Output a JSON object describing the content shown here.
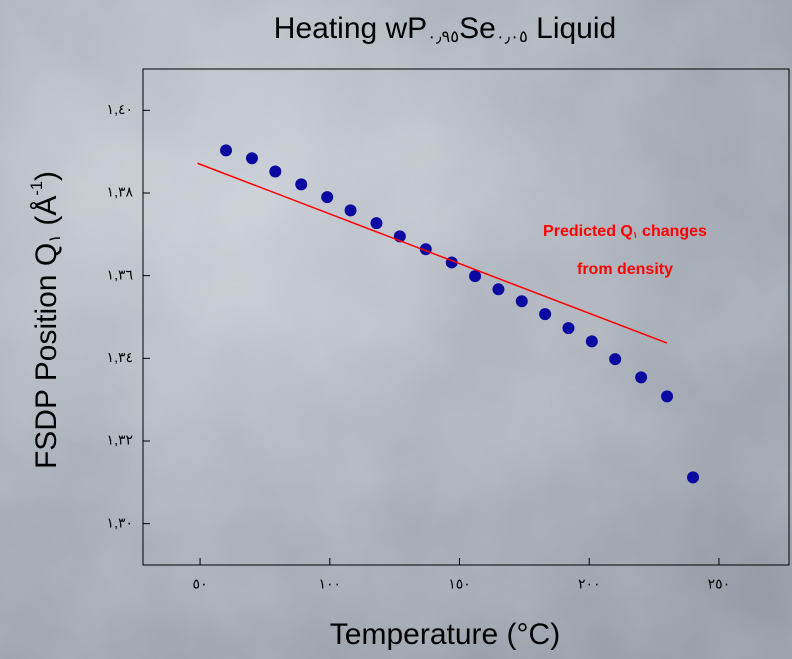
{
  "chart_data": {
    "type": "scatter",
    "title": [
      {
        "text": "Heating wP"
      },
      {
        "text": "٠٫٩٥",
        "sub": true
      },
      {
        "text": "Se"
      },
      {
        "text": "٠٫٠٥",
        "sub": true
      },
      {
        "text": " Liquid"
      }
    ],
    "x_label": "Temperature (°C)",
    "y_label": [
      {
        "text": "FSDP Position Q"
      },
      {
        "text": "١",
        "sub": true
      },
      {
        "text": " (Å"
      },
      {
        "text": "-1",
        "sup": true
      },
      {
        "text": ")"
      }
    ],
    "xlim": [
      28,
      277
    ],
    "ylim": [
      1.29,
      1.41
    ],
    "xticks": [
      {
        "value": 50,
        "label": "٥٠"
      },
      {
        "value": 100,
        "label": "١٠٠"
      },
      {
        "value": 150,
        "label": "١٥٠"
      },
      {
        "value": 200,
        "label": "٢٠٠"
      },
      {
        "value": 250,
        "label": "٢٥٠"
      }
    ],
    "yticks": [
      {
        "value": 1.3,
        "label": "١,٣٠"
      },
      {
        "value": 1.32,
        "label": "١,٣٢"
      },
      {
        "value": 1.34,
        "label": "١,٣٤"
      },
      {
        "value": 1.36,
        "label": "١,٣٦"
      },
      {
        "value": 1.38,
        "label": "١,٣٨"
      },
      {
        "value": 1.4,
        "label": "١,٤٠"
      }
    ],
    "series": [
      {
        "kind": "points",
        "color": "#0a0aa0",
        "x": [
          60,
          70,
          79,
          89,
          99,
          108,
          118,
          127,
          137,
          147,
          156,
          165,
          174,
          183,
          192,
          201,
          210,
          220,
          230,
          240
        ],
        "values": [
          1.3903,
          1.3884,
          1.3852,
          1.3821,
          1.379,
          1.3758,
          1.3727,
          1.3695,
          1.3664,
          1.3632,
          1.3599,
          1.3567,
          1.3538,
          1.3507,
          1.3473,
          1.3441,
          1.3398,
          1.3354,
          1.3308,
          1.3112
        ]
      },
      {
        "kind": "line",
        "color": "#ff0000",
        "x": [
          49,
          230
        ],
        "values": [
          1.3872,
          1.3437
        ]
      }
    ],
    "annotation": {
      "color": "#ff0000",
      "lines": [
        [
          {
            "text": "Predicted Q"
          },
          {
            "text": "١",
            "sub": true
          },
          {
            "text": " changes"
          }
        ],
        [
          {
            "text": "from density"
          }
        ]
      ]
    }
  }
}
